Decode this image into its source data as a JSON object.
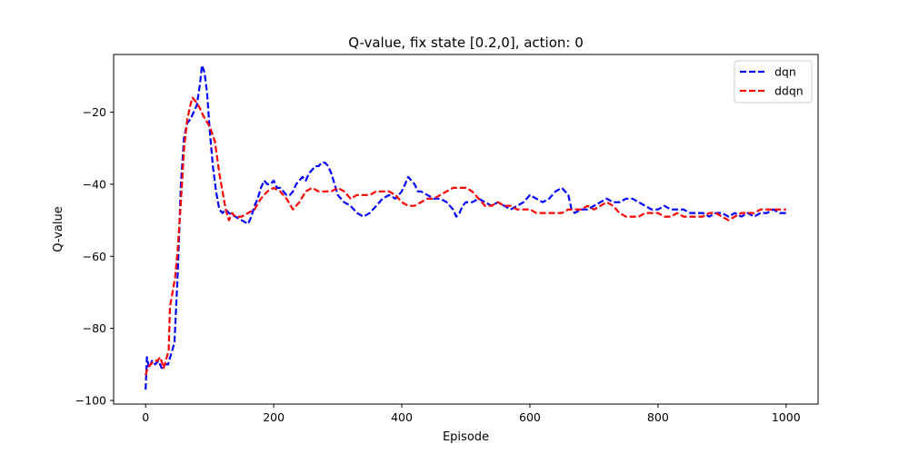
{
  "chart_data": {
    "type": "line",
    "title": "Q-value, fix state [0.2,0], action: 0",
    "xlabel": "Episode",
    "ylabel": "Q-value",
    "xlim": [
      -50,
      1050
    ],
    "ylim": [
      -101,
      -4
    ],
    "xticks": [
      0,
      200,
      400,
      600,
      800,
      1000
    ],
    "yticks": [
      -100,
      -80,
      -60,
      -40,
      -20
    ],
    "grid": false,
    "legend_position": "top-right",
    "series": [
      {
        "name": "dqn",
        "color": "#0000ff",
        "points": [
          [
            0,
            -97
          ],
          [
            2,
            -88
          ],
          [
            5,
            -91
          ],
          [
            10,
            -89
          ],
          [
            15,
            -90
          ],
          [
            20,
            -89
          ],
          [
            25,
            -91
          ],
          [
            30,
            -90
          ],
          [
            35,
            -90
          ],
          [
            40,
            -87
          ],
          [
            45,
            -84
          ],
          [
            50,
            -65
          ],
          [
            55,
            -40
          ],
          [
            60,
            -27
          ],
          [
            65,
            -23
          ],
          [
            70,
            -22
          ],
          [
            75,
            -20
          ],
          [
            80,
            -18
          ],
          [
            85,
            -12
          ],
          [
            88,
            -7
          ],
          [
            92,
            -9
          ],
          [
            96,
            -15
          ],
          [
            100,
            -25
          ],
          [
            105,
            -35
          ],
          [
            110,
            -42
          ],
          [
            115,
            -47
          ],
          [
            120,
            -48
          ],
          [
            125,
            -47
          ],
          [
            130,
            -48
          ],
          [
            140,
            -49
          ],
          [
            150,
            -50
          ],
          [
            160,
            -51
          ],
          [
            165,
            -49
          ],
          [
            170,
            -46
          ],
          [
            175,
            -44
          ],
          [
            180,
            -41
          ],
          [
            185,
            -39
          ],
          [
            190,
            -40
          ],
          [
            195,
            -40
          ],
          [
            200,
            -39
          ],
          [
            205,
            -41
          ],
          [
            210,
            -41
          ],
          [
            215,
            -42
          ],
          [
            220,
            -43
          ],
          [
            225,
            -43
          ],
          [
            230,
            -42
          ],
          [
            235,
            -40
          ],
          [
            240,
            -39
          ],
          [
            245,
            -38
          ],
          [
            250,
            -39
          ],
          [
            255,
            -37
          ],
          [
            260,
            -36
          ],
          [
            265,
            -35
          ],
          [
            270,
            -35
          ],
          [
            275,
            -34
          ],
          [
            280,
            -34
          ],
          [
            285,
            -35
          ],
          [
            290,
            -37
          ],
          [
            295,
            -40
          ],
          [
            300,
            -43
          ],
          [
            310,
            -45
          ],
          [
            320,
            -46
          ],
          [
            330,
            -48
          ],
          [
            340,
            -49
          ],
          [
            350,
            -48
          ],
          [
            360,
            -46
          ],
          [
            370,
            -44
          ],
          [
            380,
            -43
          ],
          [
            390,
            -44
          ],
          [
            400,
            -42
          ],
          [
            405,
            -40
          ],
          [
            410,
            -38
          ],
          [
            415,
            -39
          ],
          [
            420,
            -40
          ],
          [
            425,
            -42
          ],
          [
            430,
            -42
          ],
          [
            440,
            -43
          ],
          [
            450,
            -44
          ],
          [
            460,
            -44
          ],
          [
            470,
            -45
          ],
          [
            480,
            -47
          ],
          [
            485,
            -49
          ],
          [
            490,
            -48
          ],
          [
            495,
            -46
          ],
          [
            500,
            -45
          ],
          [
            510,
            -45
          ],
          [
            520,
            -44
          ],
          [
            530,
            -45
          ],
          [
            540,
            -46
          ],
          [
            550,
            -45
          ],
          [
            560,
            -46
          ],
          [
            570,
            -47
          ],
          [
            580,
            -46
          ],
          [
            590,
            -45
          ],
          [
            600,
            -43
          ],
          [
            610,
            -44
          ],
          [
            620,
            -45
          ],
          [
            630,
            -44
          ],
          [
            640,
            -42
          ],
          [
            650,
            -41
          ],
          [
            660,
            -43
          ],
          [
            665,
            -47
          ],
          [
            670,
            -48
          ],
          [
            680,
            -47
          ],
          [
            690,
            -47
          ],
          [
            700,
            -46
          ],
          [
            710,
            -45
          ],
          [
            720,
            -44
          ],
          [
            730,
            -45
          ],
          [
            740,
            -45
          ],
          [
            750,
            -44
          ],
          [
            760,
            -44
          ],
          [
            770,
            -45
          ],
          [
            780,
            -46
          ],
          [
            790,
            -47
          ],
          [
            800,
            -47
          ],
          [
            810,
            -46
          ],
          [
            820,
            -47
          ],
          [
            830,
            -47
          ],
          [
            840,
            -47
          ],
          [
            850,
            -48
          ],
          [
            860,
            -48
          ],
          [
            870,
            -48
          ],
          [
            880,
            -49
          ],
          [
            890,
            -48
          ],
          [
            900,
            -48
          ],
          [
            910,
            -49
          ],
          [
            920,
            -48
          ],
          [
            930,
            -49
          ],
          [
            940,
            -48
          ],
          [
            950,
            -49
          ],
          [
            960,
            -48
          ],
          [
            970,
            -48
          ],
          [
            980,
            -47
          ],
          [
            990,
            -48
          ],
          [
            1000,
            -48
          ]
        ]
      },
      {
        "name": "ddqn",
        "color": "#ff0000",
        "points": [
          [
            0,
            -93
          ],
          [
            3,
            -91
          ],
          [
            8,
            -90
          ],
          [
            13,
            -89
          ],
          [
            18,
            -89
          ],
          [
            23,
            -88
          ],
          [
            28,
            -91
          ],
          [
            33,
            -88
          ],
          [
            36,
            -86
          ],
          [
            38,
            -74
          ],
          [
            42,
            -70
          ],
          [
            46,
            -66
          ],
          [
            50,
            -58
          ],
          [
            55,
            -45
          ],
          [
            60,
            -30
          ],
          [
            65,
            -22
          ],
          [
            70,
            -18
          ],
          [
            73,
            -16
          ],
          [
            78,
            -17
          ],
          [
            85,
            -19
          ],
          [
            90,
            -21
          ],
          [
            100,
            -24
          ],
          [
            108,
            -28
          ],
          [
            115,
            -37
          ],
          [
            120,
            -42
          ],
          [
            125,
            -47
          ],
          [
            130,
            -50
          ],
          [
            135,
            -48
          ],
          [
            140,
            -49
          ],
          [
            150,
            -49
          ],
          [
            160,
            -48
          ],
          [
            170,
            -47
          ],
          [
            180,
            -44
          ],
          [
            190,
            -42
          ],
          [
            200,
            -41
          ],
          [
            210,
            -42
          ],
          [
            220,
            -44
          ],
          [
            230,
            -47
          ],
          [
            240,
            -45
          ],
          [
            250,
            -42
          ],
          [
            260,
            -41
          ],
          [
            270,
            -42
          ],
          [
            280,
            -42
          ],
          [
            290,
            -42
          ],
          [
            300,
            -41
          ],
          [
            310,
            -42
          ],
          [
            320,
            -44
          ],
          [
            330,
            -43
          ],
          [
            340,
            -43
          ],
          [
            350,
            -43
          ],
          [
            360,
            -42
          ],
          [
            370,
            -42
          ],
          [
            380,
            -42
          ],
          [
            390,
            -43
          ],
          [
            400,
            -45
          ],
          [
            410,
            -46
          ],
          [
            420,
            -46
          ],
          [
            430,
            -45
          ],
          [
            440,
            -44
          ],
          [
            450,
            -44
          ],
          [
            460,
            -43
          ],
          [
            470,
            -42
          ],
          [
            480,
            -41
          ],
          [
            490,
            -41
          ],
          [
            500,
            -41
          ],
          [
            510,
            -42
          ],
          [
            520,
            -44
          ],
          [
            530,
            -46
          ],
          [
            540,
            -46
          ],
          [
            550,
            -45
          ],
          [
            560,
            -46
          ],
          [
            570,
            -46
          ],
          [
            580,
            -47
          ],
          [
            590,
            -47
          ],
          [
            600,
            -47
          ],
          [
            610,
            -48
          ],
          [
            620,
            -48
          ],
          [
            630,
            -48
          ],
          [
            640,
            -48
          ],
          [
            650,
            -48
          ],
          [
            660,
            -47
          ],
          [
            670,
            -47
          ],
          [
            680,
            -47
          ],
          [
            690,
            -46
          ],
          [
            700,
            -47
          ],
          [
            710,
            -46
          ],
          [
            720,
            -45
          ],
          [
            730,
            -46
          ],
          [
            740,
            -48
          ],
          [
            750,
            -49
          ],
          [
            760,
            -49
          ],
          [
            770,
            -49
          ],
          [
            780,
            -48
          ],
          [
            790,
            -48
          ],
          [
            800,
            -48
          ],
          [
            810,
            -49
          ],
          [
            820,
            -49
          ],
          [
            830,
            -48
          ],
          [
            840,
            -49
          ],
          [
            850,
            -49
          ],
          [
            860,
            -49
          ],
          [
            870,
            -49
          ],
          [
            880,
            -48
          ],
          [
            890,
            -48
          ],
          [
            900,
            -49
          ],
          [
            910,
            -50
          ],
          [
            920,
            -49
          ],
          [
            930,
            -48
          ],
          [
            940,
            -48
          ],
          [
            950,
            -48
          ],
          [
            960,
            -47
          ],
          [
            970,
            -47
          ],
          [
            980,
            -47
          ],
          [
            990,
            -47
          ],
          [
            1000,
            -47
          ]
        ]
      }
    ]
  }
}
